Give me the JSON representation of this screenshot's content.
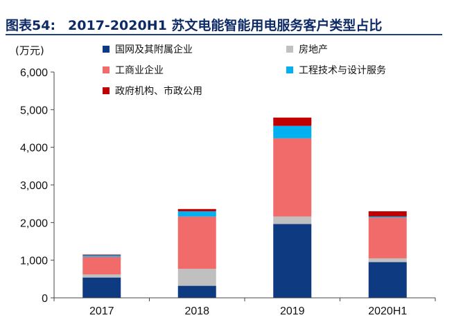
{
  "figure": {
    "label": "图表54:",
    "title": "2017-2020H1 苏文电能智能用电服务客户类型占比"
  },
  "chart_data": {
    "type": "bar",
    "stacked": true,
    "unit_label": "(万元)",
    "categories": [
      "2017",
      "2018",
      "2019",
      "2020H1"
    ],
    "ylim": [
      0,
      6000
    ],
    "yticks": [
      0,
      1000,
      2000,
      3000,
      4000,
      5000,
      6000
    ],
    "ytick_labels": [
      "0",
      "1,000",
      "2,000",
      "3,000",
      "4,000",
      "5,000",
      "6,000"
    ],
    "series": [
      {
        "name": "国网及其附属企业",
        "color": "#0d3a80",
        "values": [
          540,
          320,
          1960,
          950
        ]
      },
      {
        "name": "房地产",
        "color": "#c0c0c0",
        "values": [
          80,
          450,
          200,
          100
        ]
      },
      {
        "name": "工商业企业",
        "color": "#f26b6b",
        "values": [
          470,
          1390,
          2080,
          1080
        ]
      },
      {
        "name": "工程技术与设计服务",
        "color": "#00b0f0",
        "values": [
          40,
          140,
          330,
          30
        ]
      },
      {
        "name": "政府机构、市政公用",
        "color": "#c00000",
        "values": [
          20,
          60,
          220,
          140
        ]
      }
    ],
    "legend": {
      "placement": "top",
      "columns": 2
    },
    "grid": false
  }
}
